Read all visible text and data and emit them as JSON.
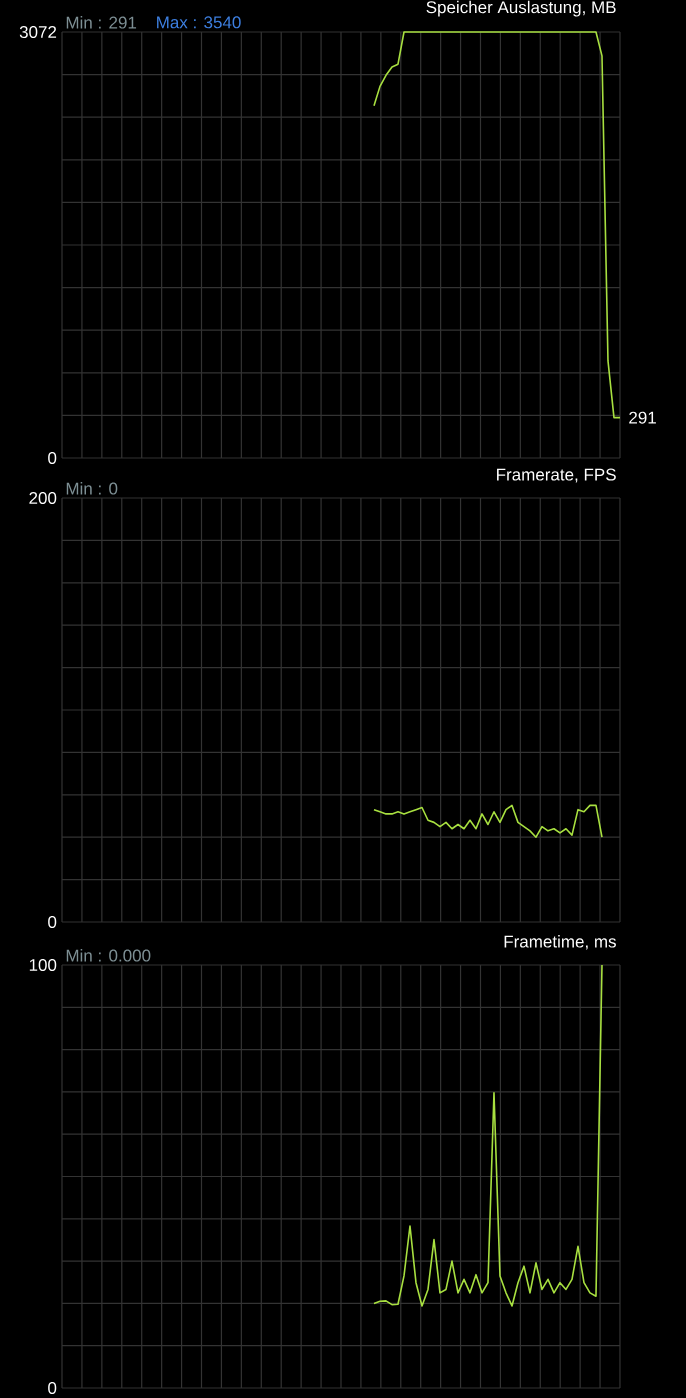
{
  "chart_data": [
    {
      "type": "line",
      "title": "Speicher Auslastung, MB",
      "annotations": [
        "Min : 291",
        "Max : 3540"
      ],
      "value_labels": [
        null,
        null,
        null,
        null,
        null,
        null,
        null,
        null,
        null,
        null,
        null,
        null,
        null,
        null,
        null,
        null,
        null,
        null,
        null,
        null,
        null,
        null,
        null,
        null,
        null,
        null,
        null,
        null,
        null,
        null,
        null,
        null,
        null,
        null,
        null,
        null,
        null,
        null,
        null,
        null,
        null,
        null,
        null,
        null,
        null,
        null,
        null,
        null,
        null,
        null,
        null,
        null,
        null,
        null,
        null,
        null,
        null,
        null,
        null,
        null,
        null,
        null,
        null,
        null,
        null,
        null,
        null,
        null,
        null,
        null,
        null,
        null,
        null,
        null,
        null,
        null,
        null,
        null,
        null,
        null,
        null,
        null,
        null,
        null,
        null,
        null,
        null,
        null,
        null,
        null,
        null,
        null,
        null,
        "291"
      ],
      "color": "#a8e040",
      "ylim": [
        0,
        3072
      ],
      "yticks": [
        0,
        3072
      ],
      "grid": true,
      "tick_labels": "y",
      "categories": [
        null,
        null,
        null,
        null,
        null,
        null,
        null,
        null,
        null,
        null,
        null,
        null,
        null,
        null,
        null,
        null,
        null,
        null,
        null,
        null,
        null,
        null,
        null,
        null,
        null,
        null,
        null,
        null,
        null,
        null,
        null,
        null,
        null,
        null,
        null,
        null,
        null,
        null,
        null,
        null,
        null,
        null,
        null,
        null,
        null,
        null,
        null,
        null,
        null,
        null,
        null,
        null,
        null,
        null,
        null,
        null,
        null,
        null,
        null,
        null,
        null,
        null,
        null,
        null,
        null,
        null,
        null,
        null,
        null,
        null,
        null,
        null,
        null,
        null,
        null,
        null,
        null,
        null,
        null,
        null,
        null,
        null,
        null,
        null,
        null,
        null,
        null,
        null,
        null,
        null,
        null,
        null,
        null,
        null
      ],
      "values": [
        null,
        null,
        null,
        null,
        null,
        null,
        null,
        null,
        null,
        null,
        null,
        null,
        null,
        null,
        null,
        null,
        null,
        null,
        null,
        null,
        null,
        null,
        null,
        null,
        null,
        null,
        null,
        null,
        null,
        null,
        null,
        null,
        null,
        null,
        null,
        null,
        null,
        null,
        null,
        null,
        null,
        null,
        null,
        null,
        null,
        null,
        null,
        null,
        null,
        null,
        null,
        null,
        2540,
        2680,
        2760,
        2820,
        2840,
        3072,
        3072,
        3072,
        3072,
        3072,
        3072,
        3072,
        3072,
        3072,
        3072,
        3072,
        3072,
        3072,
        3072,
        3072,
        3072,
        3072,
        3072,
        3072,
        3072,
        3072,
        3072,
        3072,
        3072,
        3072,
        3072,
        3072,
        3072,
        3072,
        3072,
        3072,
        3072,
        3072,
        2900,
        700,
        291,
        291
      ]
    },
    {
      "type": "line",
      "title": "Framerate, FPS",
      "annotations": [
        "Min : 0"
      ],
      "color": "#a8e040",
      "ylim": [
        0,
        200
      ],
      "yticks": [
        0,
        200
      ],
      "grid": true,
      "tick_labels": "y",
      "categories": [
        null,
        null,
        null,
        null,
        null,
        null,
        null,
        null,
        null,
        null,
        null,
        null,
        null,
        null,
        null,
        null,
        null,
        null,
        null,
        null,
        null,
        null,
        null,
        null,
        null,
        null,
        null,
        null,
        null,
        null,
        null,
        null,
        null,
        null,
        null,
        null,
        null,
        null,
        null,
        null,
        null,
        null,
        null,
        null,
        null,
        null,
        null,
        null,
        null,
        null,
        null,
        null,
        null,
        null,
        null,
        null,
        null,
        null,
        null,
        null,
        null,
        null,
        null,
        null,
        null,
        null,
        null,
        null,
        null,
        null,
        null,
        null,
        null,
        null,
        null,
        null,
        null,
        null,
        null,
        null,
        null,
        null,
        null,
        null,
        null,
        null,
        null,
        null,
        null,
        null,
        null,
        null,
        null,
        null
      ],
      "values": [
        null,
        null,
        null,
        null,
        null,
        null,
        null,
        null,
        null,
        null,
        null,
        null,
        null,
        null,
        null,
        null,
        null,
        null,
        null,
        null,
        null,
        null,
        null,
        null,
        null,
        null,
        null,
        null,
        null,
        null,
        null,
        null,
        null,
        null,
        null,
        null,
        null,
        null,
        null,
        null,
        null,
        null,
        null,
        null,
        null,
        null,
        null,
        null,
        null,
        null,
        null,
        null,
        53,
        52,
        51,
        51,
        52,
        51,
        52,
        53,
        54,
        48,
        47,
        45,
        47,
        44,
        46,
        44,
        48,
        44,
        51,
        46,
        52,
        47,
        53,
        55,
        47,
        45,
        43,
        40,
        45,
        43,
        44,
        42,
        44,
        41,
        53,
        52,
        55,
        55,
        40,
        null,
        null,
        null
      ]
    },
    {
      "type": "line",
      "title": "Frametime, ms",
      "annotations": [
        "Min : 0.000"
      ],
      "color": "#a8e040",
      "ylim": [
        0,
        100
      ],
      "yticks": [
        0,
        100
      ],
      "grid": true,
      "tick_labels": "y",
      "categories": [
        null,
        null,
        null,
        null,
        null,
        null,
        null,
        null,
        null,
        null,
        null,
        null,
        null,
        null,
        null,
        null,
        null,
        null,
        null,
        null,
        null,
        null,
        null,
        null,
        null,
        null,
        null,
        null,
        null,
        null,
        null,
        null,
        null,
        null,
        null,
        null,
        null,
        null,
        null,
        null,
        null,
        null,
        null,
        null,
        null,
        null,
        null,
        null,
        null,
        null,
        null,
        null,
        null,
        null,
        null,
        null,
        null,
        null,
        null,
        null,
        null,
        null,
        null,
        null,
        null,
        null,
        null,
        null,
        null,
        null,
        null,
        null,
        null,
        null,
        null,
        null,
        null,
        null,
        null,
        null,
        null,
        null,
        null,
        null,
        null,
        null,
        null,
        null,
        null,
        null,
        null,
        null,
        null,
        null
      ],
      "values": [
        null,
        null,
        null,
        null,
        null,
        null,
        null,
        null,
        null,
        null,
        null,
        null,
        null,
        null,
        null,
        null,
        null,
        null,
        null,
        null,
        null,
        null,
        null,
        null,
        null,
        null,
        null,
        null,
        null,
        null,
        null,
        null,
        null,
        null,
        null,
        null,
        null,
        null,
        null,
        null,
        null,
        null,
        null,
        null,
        null,
        null,
        null,
        null,
        null,
        null,
        null,
        null,
        20,
        20.5,
        20.6,
        19.7,
        19.8,
        26.5,
        38.3,
        24.9,
        19.4,
        23.3,
        35.1,
        22.5,
        23.3,
        30,
        22.5,
        25.7,
        22.5,
        26.8,
        22.5,
        24.9,
        69.8,
        26.5,
        22.5,
        19.4,
        24.9,
        28.8,
        22.5,
        29.6,
        23.3,
        25.7,
        22.5,
        24.9,
        23.3,
        25.7,
        33.5,
        24.9,
        22.5,
        21.7,
        100,
        null,
        null,
        null
      ]
    }
  ]
}
